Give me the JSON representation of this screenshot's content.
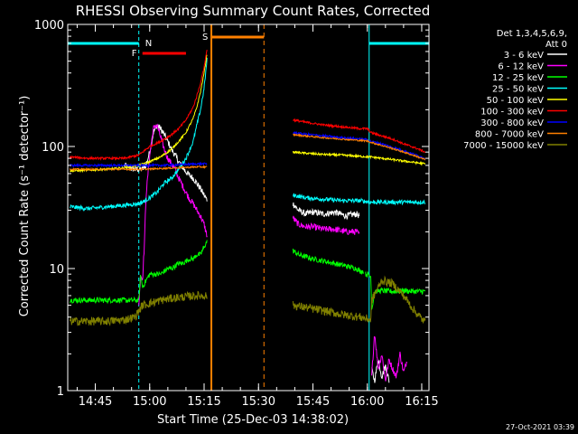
{
  "chart_data": {
    "type": "line",
    "title": "RHESSI Observing Summary Count Rates, Corrected",
    "xlabel": "Start Time (25-Dec-03 14:38:02)",
    "ylabel": "Corrected Count Rate (s⁻¹ detector⁻¹)",
    "yscale": "log",
    "ylim": [
      1,
      1000
    ],
    "xlim_minutes": [
      -0.6,
      99
    ],
    "x_unit": "minutes after 14:38:02",
    "x_ticks": [
      {
        "label": "14:45",
        "t": 7.0
      },
      {
        "label": "15:00",
        "t": 22.0
      },
      {
        "label": "15:15",
        "t": 37.0
      },
      {
        "label": "15:30",
        "t": 52.0
      },
      {
        "label": "15:45",
        "t": 67.0
      },
      {
        "label": "16:00",
        "t": 82.0
      },
      {
        "label": "16:15",
        "t": 97.0
      }
    ],
    "y_ticks": [
      {
        "label": "1",
        "v": 1
      },
      {
        "label": "10",
        "v": 10
      },
      {
        "label": "100",
        "v": 100
      },
      {
        "label": "1000",
        "v": 1000
      }
    ],
    "legend_header": [
      "Det 1,3,4,5,6,9,",
      "Att 0"
    ],
    "legend_position": "right",
    "series": [
      {
        "name": "3 - 6 keV",
        "color": "#ffffff",
        "noise": 0.06,
        "segments": [
          {
            "t": [
              15,
              16,
              17,
              18,
              19,
              20,
              21,
              22,
              23,
              24,
              25,
              26,
              27,
              28,
              29,
              30,
              31,
              32,
              33,
              34,
              35,
              36,
              37,
              37.9
            ],
            "v": [
              70,
              68,
              66,
              65,
              65,
              65,
              70,
              90,
              130,
              150,
              140,
              125,
              110,
              95,
              85,
              75,
              68,
              62,
              58,
              55,
              50,
              45,
              40,
              36
            ]
          },
          {
            "t": [
              61.5,
              63,
              65,
              67,
              70,
              73,
              76,
              79,
              79.8
            ],
            "v": [
              34,
              30,
              28,
              29,
              28,
              29,
              27,
              28,
              27
            ]
          },
          {
            "t": [
              83.2,
              84,
              85,
              86,
              87,
              88
            ],
            "v": [
              1.5,
              1.2,
              1.8,
              1.3,
              1.6,
              1.2
            ]
          }
        ]
      },
      {
        "name": "6 - 12 keV",
        "color": "#ff00ff",
        "noise": 0.06,
        "segments": [
          {
            "t": [
              19,
              19.5,
              20,
              20.5,
              21,
              22,
              23,
              24,
              25,
              26,
              27,
              28,
              29,
              30,
              31,
              32,
              33,
              34,
              35,
              36,
              37,
              37.9
            ],
            "v": [
              5,
              9,
              8,
              15,
              40,
              85,
              140,
              150,
              120,
              95,
              80,
              72,
              65,
              55,
              48,
              42,
              37,
              34,
              30,
              27,
              23,
              18
            ]
          },
          {
            "t": [
              61.5,
              63,
              65,
              67,
              70,
              73,
              76,
              79,
              79.8
            ],
            "v": [
              26,
              23,
              22,
              22,
              21,
              21,
              20,
              20,
              19
            ]
          },
          {
            "t": [
              83.2,
              84,
              85,
              86,
              87,
              88,
              89,
              90,
              91,
              92,
              93
            ],
            "v": [
              1.3,
              3,
              1.5,
              2,
              1.2,
              1.8,
              1.5,
              1.3,
              2,
              1.4,
              1.8
            ]
          }
        ]
      },
      {
        "name": "12 - 25 keV",
        "color": "#00ff00",
        "noise": 0.05,
        "segments": [
          {
            "t": [
              0,
              5,
              10,
              15,
              19,
              19.5,
              20,
              21,
              22,
              23,
              24,
              25,
              26,
              27,
              28,
              29,
              30,
              31,
              32,
              33,
              34,
              35,
              36,
              37,
              37.9
            ],
            "v": [
              5.5,
              5.5,
              5.5,
              5.5,
              5.5,
              9,
              7,
              8,
              9,
              9,
              9,
              9,
              9.5,
              10,
              10,
              10.5,
              11,
              11,
              11.5,
              12,
              12,
              13,
              13,
              15,
              17
            ]
          },
          {
            "t": [
              61.5,
              63,
              65,
              67,
              70,
              73,
              76,
              79,
              80,
              81
            ],
            "v": [
              14,
              13,
              12.5,
              12,
              11.5,
              11,
              10.5,
              10,
              9.5,
              9.5
            ]
          },
          {
            "t": [
              81.5,
              82,
              83,
              83.2,
              84,
              86,
              88,
              90,
              92,
              94,
              96,
              98
            ],
            "v": [
              9,
              9,
              8.5,
              4.5,
              6.5,
              6.6,
              6.5,
              6.5,
              6.6,
              6.5,
              6.5,
              6.5
            ]
          }
        ]
      },
      {
        "name": "25 - 50 keV",
        "color": "#00ffff",
        "noise": 0.04,
        "segments": [
          {
            "t": [
              0,
              5,
              10,
              15,
              19,
              20,
              22,
              24,
              26,
              28,
              30,
              32,
              34,
              35,
              36,
              37,
              37.9
            ],
            "v": [
              32,
              31,
              32,
              33,
              34,
              35,
              38,
              42,
              50,
              55,
              65,
              80,
              110,
              150,
              200,
              300,
              550
            ]
          },
          {
            "t": [
              61.5,
              65,
              70,
              75,
              80,
              83,
              86,
              89,
              92,
              95,
              98
            ],
            "v": [
              40,
              38,
              37,
              36,
              36,
              35,
              35,
              35,
              35,
              35,
              35
            ]
          }
        ]
      },
      {
        "name": "50 - 100 keV",
        "color": "#ffff00",
        "noise": 0.02,
        "segments": [
          {
            "t": [
              0,
              5,
              10,
              15,
              19,
              22,
              25,
              28,
              30,
              32,
              34,
              35,
              36,
              37,
              37.9
            ],
            "v": [
              63,
              64,
              65,
              67,
              70,
              75,
              82,
              95,
              110,
              130,
              170,
              210,
              280,
              400,
              600
            ]
          },
          {
            "t": [
              61.5,
              65,
              70,
              75,
              80,
              83,
              86,
              89,
              92,
              95,
              98
            ],
            "v": [
              90,
              88,
              86,
              85,
              83,
              82,
              80,
              78,
              76,
              74,
              72
            ]
          }
        ]
      },
      {
        "name": "100 - 300 keV",
        "color": "#ff0000",
        "noise": 0.02,
        "segments": [
          {
            "t": [
              0,
              5,
              10,
              15,
              19,
              22,
              25,
              28,
              30,
              32,
              34,
              35,
              36,
              37,
              37.9
            ],
            "v": [
              82,
              80,
              80,
              80,
              85,
              100,
              110,
              125,
              140,
              165,
              210,
              260,
              330,
              450,
              650
            ]
          },
          {
            "t": [
              61.5,
              65,
              70,
              75,
              80,
              82,
              83,
              86,
              89,
              92,
              95,
              98
            ],
            "v": [
              165,
              158,
              150,
              145,
              140,
              140,
              130,
              122,
              115,
              105,
              98,
              90
            ]
          }
        ]
      },
      {
        "name": "300 - 800 keV",
        "color": "#0000ff",
        "noise": 0.02,
        "segments": [
          {
            "t": [
              0,
              10,
              20,
              25,
              30,
              35,
              37.9
            ],
            "v": [
              70,
              70,
              70,
              70,
              71,
              72,
              72
            ]
          },
          {
            "t": [
              61.5,
              65,
              70,
              75,
              80,
              82,
              83,
              86,
              89,
              92,
              95,
              98
            ],
            "v": [
              130,
              126,
              122,
              118,
              115,
              114,
              110,
              105,
              98,
              92,
              86,
              80
            ]
          }
        ]
      },
      {
        "name": "800 - 7000 keV",
        "color": "#ff8000",
        "noise": 0.015,
        "segments": [
          {
            "t": [
              0,
              10,
              20,
              25,
              30,
              35,
              37.9
            ],
            "v": [
              65,
              65,
              65,
              66,
              67,
              68,
              68
            ]
          },
          {
            "t": [
              61.5,
              65,
              70,
              75,
              80,
              82,
              83,
              86,
              89,
              92,
              95,
              98
            ],
            "v": [
              125,
              122,
              118,
              115,
              112,
              111,
              108,
              102,
              96,
              90,
              84,
              78
            ]
          }
        ]
      },
      {
        "name": "7000 - 15000 keV",
        "color": "#808000",
        "noise": 0.08,
        "segments": [
          {
            "t": [
              0,
              5,
              10,
              15,
              18,
              19,
              20,
              25,
              30,
              35,
              37.9
            ],
            "v": [
              3.7,
              3.7,
              3.7,
              3.8,
              4.0,
              4.5,
              5.0,
              5.5,
              5.8,
              6.0,
              6.0
            ]
          },
          {
            "t": [
              61.5,
              65,
              70,
              75,
              80,
              83,
              83.2,
              86,
              89,
              92,
              95,
              98
            ],
            "v": [
              5.0,
              4.8,
              4.5,
              4.2,
              4.0,
              3.8,
              5.5,
              8,
              7.5,
              6.0,
              4.5,
              3.6
            ]
          }
        ]
      }
    ],
    "annotations": [
      {
        "text": "N",
        "kind": "night",
        "color": "#00ffff"
      },
      {
        "text": "F",
        "kind": "flare",
        "color": "#ff0000"
      },
      {
        "text": "S",
        "kind": "saa",
        "color": "#ff8000"
      }
    ],
    "night_intervals": [
      [
        -0.6,
        19
      ],
      [
        82.5,
        99
      ]
    ],
    "saa_intervals": [
      [
        39,
        53.5
      ]
    ],
    "flare_intervals": [
      [
        20,
        32
      ]
    ],
    "footer_timestamp": "27-Oct-2021 03:39"
  }
}
